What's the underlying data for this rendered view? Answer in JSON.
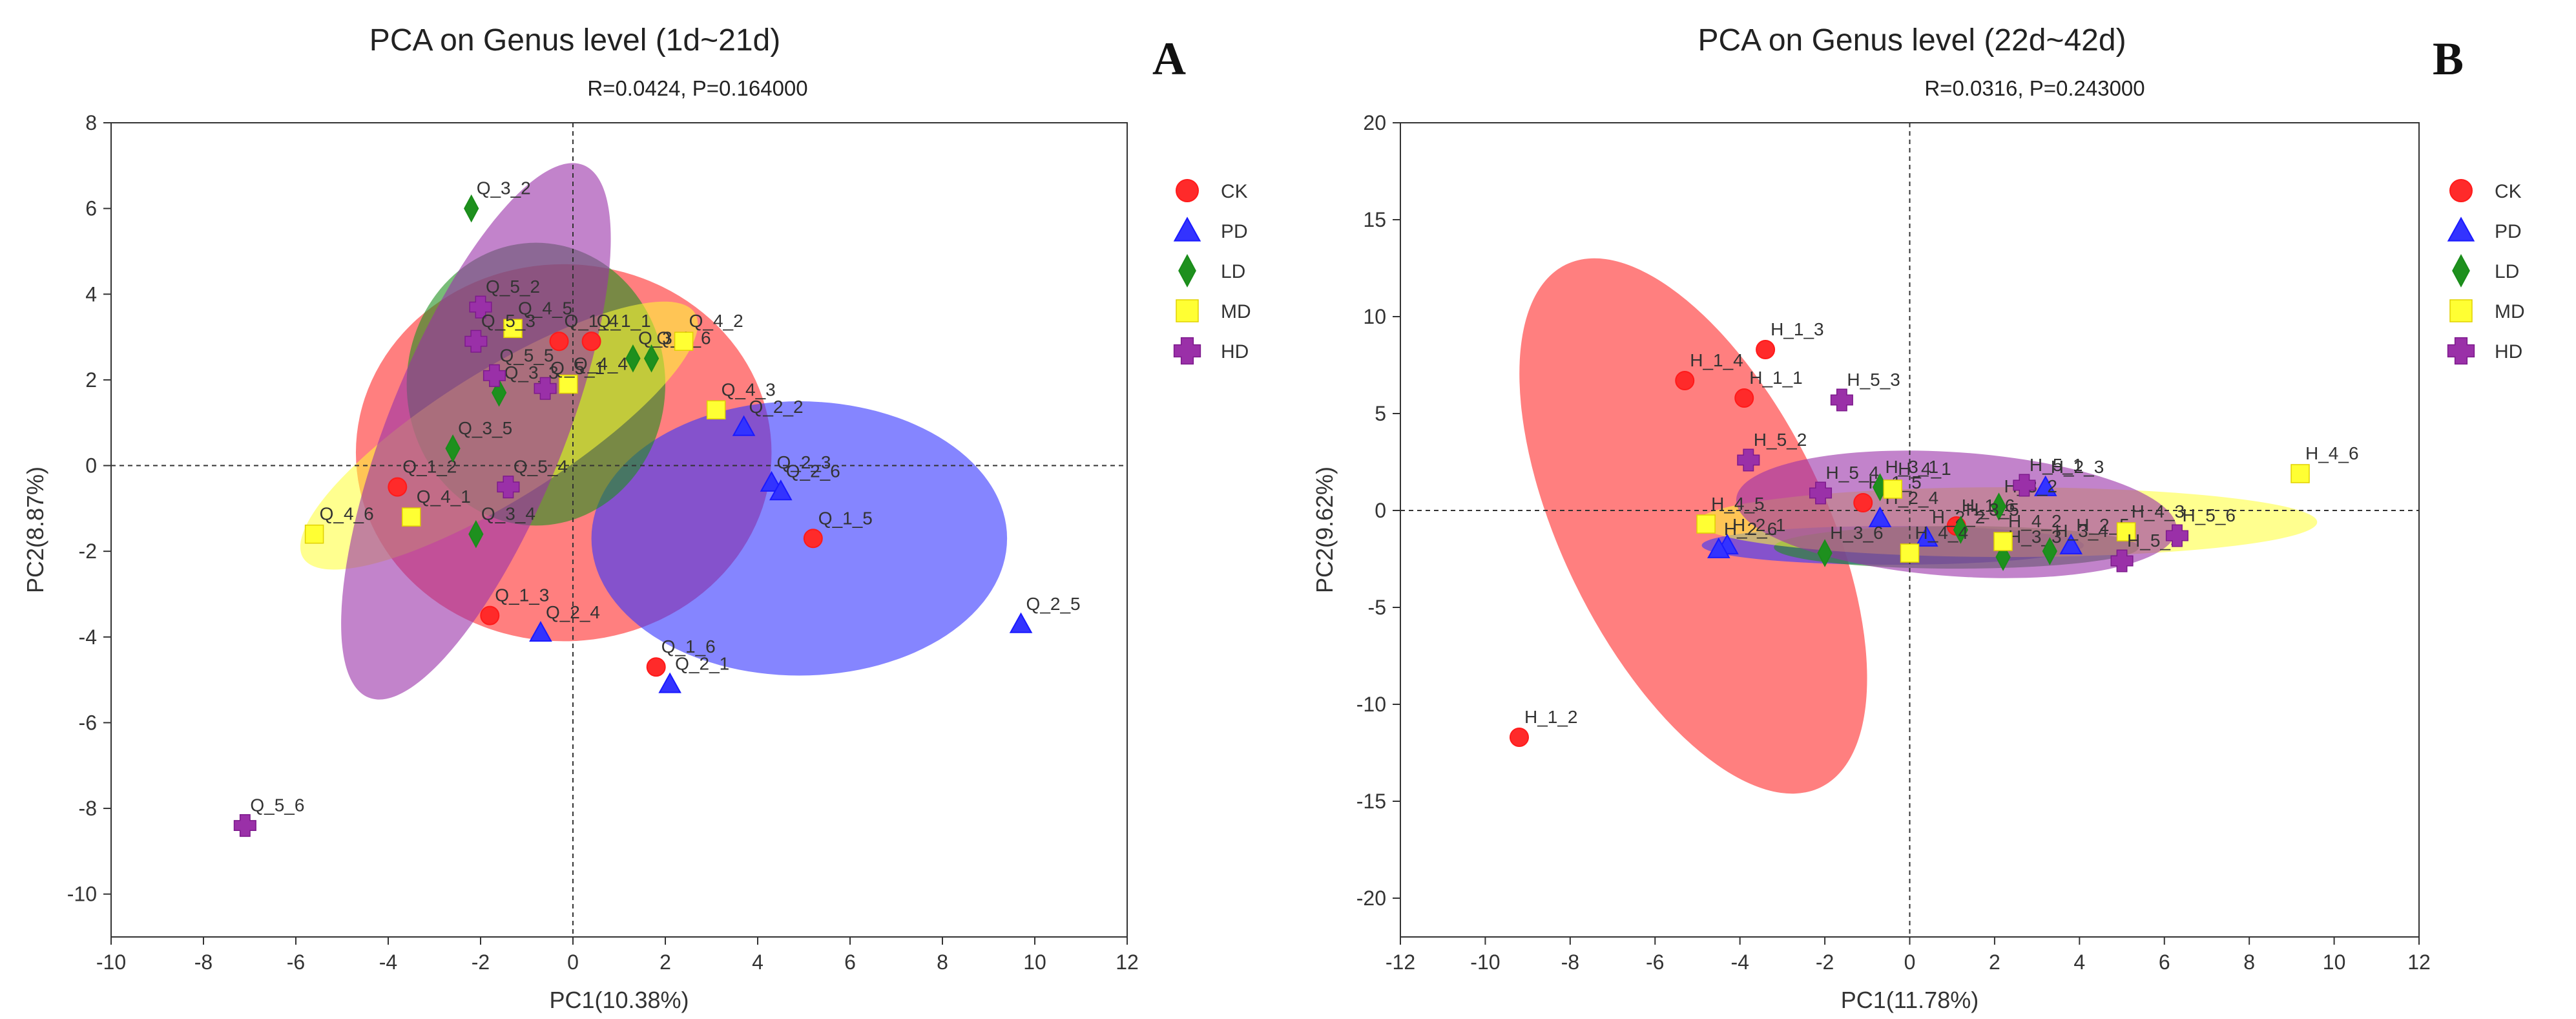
{
  "chart_data": [
    {
      "type": "scatter",
      "panel": "A",
      "title": "PCA on Genus level  (1d~21d)",
      "stat": "R=0.0424, P=0.164000",
      "xlabel": "PC1(10.38%)",
      "ylabel": "PC2(8.87%)",
      "xlim": [
        -10,
        12
      ],
      "ylim": [
        -11,
        8
      ],
      "xticks": [
        -10,
        -8,
        -6,
        -4,
        -2,
        0,
        2,
        4,
        6,
        8,
        10,
        12
      ],
      "yticks": [
        -10,
        -8,
        -6,
        -4,
        -2,
        0,
        2,
        4,
        6,
        8
      ],
      "legend_position": "right",
      "ellipses": [
        {
          "group": "CK",
          "cx": -0.2,
          "cy": 0.3,
          "rx": 4.5,
          "ry": 4.4,
          "angle": 0
        },
        {
          "group": "PD",
          "cx": 4.9,
          "cy": -1.7,
          "rx": 4.5,
          "ry": 3.2,
          "angle": 0
        },
        {
          "group": "LD",
          "cx": -0.8,
          "cy": 1.9,
          "rx": 2.8,
          "ry": 3.3,
          "angle": 0
        },
        {
          "group": "MD",
          "cx": -1.6,
          "cy": 0.7,
          "rx": 5.0,
          "ry": 1.5,
          "angle": 32
        },
        {
          "group": "HD",
          "cx": -2.1,
          "cy": 0.8,
          "rx": 1.9,
          "ry": 6.7,
          "angle": -22
        }
      ],
      "series": [
        {
          "name": "CK",
          "points": [
            {
              "label": "Q_1_1",
              "x": 0.4,
              "y": 2.9
            },
            {
              "label": "Q_1_2",
              "x": -3.8,
              "y": -0.5
            },
            {
              "label": "Q_1_3",
              "x": -1.8,
              "y": -3.5
            },
            {
              "label": "Q_1_4",
              "x": -0.3,
              "y": 2.9
            },
            {
              "label": "Q_1_5",
              "x": 5.2,
              "y": -1.7
            },
            {
              "label": "Q_1_6",
              "x": 1.8,
              "y": -4.7
            }
          ]
        },
        {
          "name": "PD",
          "points": [
            {
              "label": "Q_2_1",
              "x": 2.1,
              "y": -5.1
            },
            {
              "label": "Q_2_2",
              "x": 3.7,
              "y": 0.9
            },
            {
              "label": "Q_2_3",
              "x": 4.3,
              "y": -0.4
            },
            {
              "label": "Q_2_4",
              "x": -0.7,
              "y": -3.9
            },
            {
              "label": "Q_2_5",
              "x": 9.7,
              "y": -3.7
            },
            {
              "label": "Q_2_6",
              "x": 4.5,
              "y": -0.6
            }
          ]
        },
        {
          "name": "LD",
          "points": [
            {
              "label": "Q_3_1",
              "x": 1.3,
              "y": 2.5
            },
            {
              "label": "Q_3_2",
              "x": -2.2,
              "y": 6.0
            },
            {
              "label": "Q_3_3",
              "x": -1.6,
              "y": 1.7
            },
            {
              "label": "Q_3_4",
              "x": -2.1,
              "y": -1.6
            },
            {
              "label": "Q_3_5",
              "x": -2.6,
              "y": 0.4
            },
            {
              "label": "Q_3_6",
              "x": 1.7,
              "y": 2.5
            }
          ]
        },
        {
          "name": "MD",
          "points": [
            {
              "label": "Q_4_1",
              "x": -3.5,
              "y": -1.2
            },
            {
              "label": "Q_4_2",
              "x": 2.4,
              "y": 2.9
            },
            {
              "label": "Q_4_3",
              "x": 3.1,
              "y": 1.3
            },
            {
              "label": "Q_4_4",
              "x": -0.1,
              "y": 1.9
            },
            {
              "label": "Q_4_5",
              "x": -1.3,
              "y": 3.2
            },
            {
              "label": "Q_4_6",
              "x": -5.6,
              "y": -1.6
            }
          ]
        },
        {
          "name": "HD",
          "points": [
            {
              "label": "Q_5_1",
              "x": -0.6,
              "y": 1.8
            },
            {
              "label": "Q_5_2",
              "x": -2.0,
              "y": 3.7
            },
            {
              "label": "Q_5_3",
              "x": -2.1,
              "y": 2.9
            },
            {
              "label": "Q_5_4",
              "x": -1.4,
              "y": -0.5
            },
            {
              "label": "Q_5_5",
              "x": -1.7,
              "y": 2.1
            },
            {
              "label": "Q_5_6",
              "x": -7.1,
              "y": -8.4
            }
          ]
        }
      ]
    },
    {
      "type": "scatter",
      "panel": "B",
      "title": "PCA on Genus level  (22d~42d)",
      "stat": "R=0.0316, P=0.243000",
      "xlabel": "PC1(11.78%)",
      "ylabel": "PC2(9.62%)",
      "xlim": [
        -12,
        12
      ],
      "ylim": [
        -22,
        20
      ],
      "xticks": [
        -12,
        -10,
        -8,
        -6,
        -4,
        -2,
        0,
        2,
        4,
        6,
        8,
        10,
        12
      ],
      "yticks": [
        -20,
        -15,
        -10,
        -5,
        0,
        5,
        10,
        15,
        20
      ],
      "legend_position": "right",
      "ellipses": [
        {
          "group": "CK",
          "cx": -5.1,
          "cy": -0.8,
          "rx": 3.1,
          "ry": 15.0,
          "angle": 26
        },
        {
          "group": "PD",
          "cx": -0.4,
          "cy": -1.8,
          "rx": 4.5,
          "ry": 1.0,
          "angle": 0
        },
        {
          "group": "LD",
          "cx": 1.1,
          "cy": -1.9,
          "rx": 4.3,
          "ry": 1.1,
          "angle": 0
        },
        {
          "group": "MD",
          "cx": 2.3,
          "cy": -0.6,
          "rx": 7.3,
          "ry": 1.8,
          "angle": 0
        },
        {
          "group": "HD",
          "cx": 1.1,
          "cy": -0.2,
          "rx": 5.2,
          "ry": 3.2,
          "angle": -4
        }
      ],
      "series": [
        {
          "name": "CK",
          "points": [
            {
              "label": "H_1_1",
              "x": -3.9,
              "y": 5.8
            },
            {
              "label": "H_1_2",
              "x": -9.2,
              "y": -11.7
            },
            {
              "label": "H_1_3",
              "x": -3.4,
              "y": 8.3
            },
            {
              "label": "H_1_4",
              "x": -5.3,
              "y": 6.7
            },
            {
              "label": "H_1_5",
              "x": -1.1,
              "y": 0.4
            },
            {
              "label": "H_1_6",
              "x": 1.1,
              "y": -0.8
            }
          ]
        },
        {
          "name": "PD",
          "points": [
            {
              "label": "H_2_1",
              "x": -4.3,
              "y": -1.8
            },
            {
              "label": "H_2_2",
              "x": 0.4,
              "y": -1.4
            },
            {
              "label": "H_2_3",
              "x": 3.2,
              "y": 1.2
            },
            {
              "label": "H_2_4",
              "x": -0.7,
              "y": -0.4
            },
            {
              "label": "H_2_5",
              "x": 3.8,
              "y": -1.8
            },
            {
              "label": "H_2_6",
              "x": -4.5,
              "y": -2.0
            }
          ]
        },
        {
          "name": "LD",
          "points": [
            {
              "label": "H_3_1",
              "x": -0.7,
              "y": 1.2
            },
            {
              "label": "H_3_2",
              "x": 2.1,
              "y": 0.2
            },
            {
              "label": "H_3_3",
              "x": 2.2,
              "y": -2.4
            },
            {
              "label": "H_3_4",
              "x": 3.3,
              "y": -2.1
            },
            {
              "label": "H_3_5",
              "x": 1.2,
              "y": -1.0
            },
            {
              "label": "H_3_6",
              "x": -2.0,
              "y": -2.2
            }
          ]
        },
        {
          "name": "MD",
          "points": [
            {
              "label": "H_4_1",
              "x": -0.4,
              "y": 1.1
            },
            {
              "label": "H_4_2",
              "x": 2.2,
              "y": -1.6
            },
            {
              "label": "H_4_3",
              "x": 5.1,
              "y": -1.1
            },
            {
              "label": "H_4_4",
              "x": 0.0,
              "y": -2.2
            },
            {
              "label": "H_4_5",
              "x": -4.8,
              "y": -0.7
            },
            {
              "label": "H_4_6",
              "x": 9.2,
              "y": 1.9
            }
          ]
        },
        {
          "name": "HD",
          "points": [
            {
              "label": "H_5_1",
              "x": 2.7,
              "y": 1.3
            },
            {
              "label": "H_5_2",
              "x": -3.8,
              "y": 2.6
            },
            {
              "label": "H_5_3",
              "x": -1.6,
              "y": 5.7
            },
            {
              "label": "H_5_4",
              "x": -2.1,
              "y": 0.9
            },
            {
              "label": "H_5_5",
              "x": 5.0,
              "y": -2.6
            },
            {
              "label": "H_5_6",
              "x": 6.3,
              "y": -1.3
            }
          ]
        }
      ]
    }
  ],
  "legend": [
    {
      "name": "CK",
      "marker": "circle",
      "color": "#ff1a1a",
      "fill": "#ff2a2a"
    },
    {
      "name": "PD",
      "marker": "triangle",
      "color": "#1a1aff",
      "fill": "#3333ff"
    },
    {
      "name": "LD",
      "marker": "diamond",
      "color": "#1a8c1a",
      "fill": "#1e901e"
    },
    {
      "name": "MD",
      "marker": "square",
      "color": "#ffff1a",
      "fill": "#ffff33"
    },
    {
      "name": "HD",
      "marker": "plus",
      "color": "#7d1a8c",
      "fill": "#9a30a8"
    }
  ]
}
